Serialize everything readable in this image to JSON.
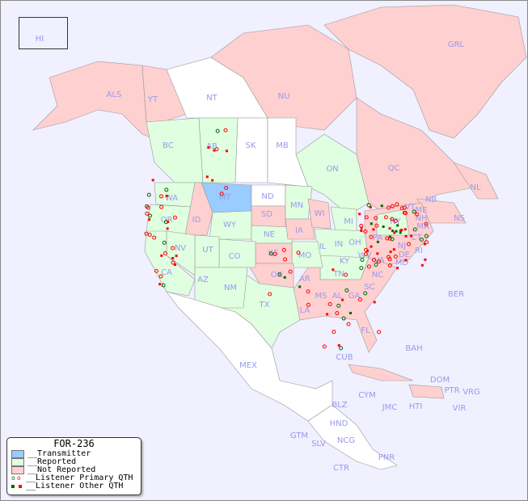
{
  "legend": {
    "title": "FOR-236",
    "items": [
      {
        "label": "__Transmitter",
        "color": "#99ccff"
      },
      {
        "label": "__Reported",
        "color": "#e0ffe0"
      },
      {
        "label": "__Not Reported",
        "color": "#ffd0d0"
      },
      {
        "label": "__Listener Primary QTH",
        "colors": [
          "#006600",
          "#ff0000"
        ]
      },
      {
        "label": "__Listener Other QTH",
        "colors": [
          "#006600",
          "#ff0000"
        ]
      }
    ]
  },
  "colors": {
    "background": "#f0f0ff",
    "transmitter": "#99ccff",
    "reported": "#e0ffe0",
    "not_reported": "#ffd0d0",
    "unlisted": "#ffffff",
    "label": "#9999ee"
  },
  "regions": {
    "transmitter": [
      "MT"
    ],
    "reported": [
      "BC",
      "AB",
      "ON",
      "WA",
      "OR",
      "WY",
      "NE",
      "MN",
      "IL",
      "IN",
      "OH",
      "MI",
      "NY",
      "KY",
      "TN",
      "MO",
      "CO",
      "UT",
      "NV",
      "CA",
      "AZ",
      "NM",
      "TX"
    ],
    "not_reported": [
      "ALS",
      "YT",
      "NU",
      "GRL",
      "QC",
      "NL",
      "NS",
      "NB",
      "ME",
      "VT",
      "NH",
      "MA",
      "CT",
      "RI",
      "NJ",
      "DE",
      "MD",
      "PA",
      "VA",
      "WV",
      "NC",
      "SC",
      "GA",
      "FL",
      "AL",
      "MS",
      "LA",
      "AR",
      "OK",
      "KS",
      "IA",
      "WI",
      "SD",
      "ID",
      "HI",
      "CUB",
      "BAH",
      "HTI",
      "DOM",
      "PTR"
    ],
    "unlisted": [
      "NT",
      "SK",
      "MB",
      "ND",
      "MEX",
      "CYM",
      "JMC",
      "VRG",
      "VIR",
      "BLZ",
      "GTM",
      "HND",
      "SLV",
      "NCG",
      "CTR",
      "PNR",
      "BER"
    ]
  },
  "labels": [
    "HI",
    "ALS",
    "YT",
    "NT",
    "NU",
    "GRL",
    "BC",
    "AB",
    "SK",
    "MB",
    "ON",
    "QC",
    "NL",
    "NS",
    "NB",
    "ME",
    "WA",
    "OR",
    "ID",
    "MT",
    "ND",
    "MN",
    "WI",
    "MI",
    "SD",
    "WY",
    "NE",
    "IA",
    "IL",
    "IN",
    "OH",
    "PA",
    "NY",
    "VT",
    "NH",
    "MA",
    "CT",
    "RI",
    "NJ",
    "DE",
    "MD",
    "VA",
    "WV",
    "KY",
    "TN",
    "NC",
    "SC",
    "GA",
    "FL",
    "AL",
    "MS",
    "LA",
    "AR",
    "MO",
    "KS",
    "OK",
    "TX",
    "NM",
    "AZ",
    "CO",
    "UT",
    "NV",
    "CA",
    "MEX",
    "CUB",
    "BAH",
    "CYM",
    "JMC",
    "HTI",
    "DOM",
    "PTR",
    "VRG",
    "VIR",
    "BLZ",
    "GTM",
    "HND",
    "SLV",
    "NCG",
    "CTR",
    "PNR",
    "BER"
  ]
}
